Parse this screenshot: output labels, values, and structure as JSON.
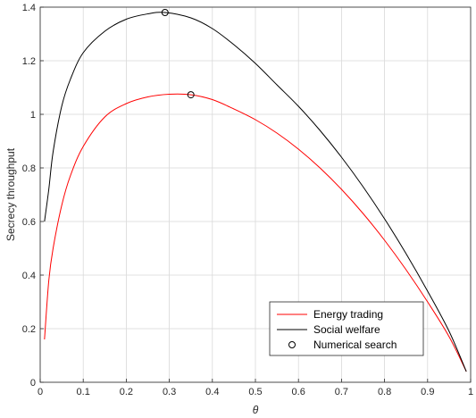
{
  "chart_data": {
    "type": "line",
    "xlabel": "θ",
    "ylabel": "Secrecy throughput",
    "xlim": [
      0,
      1
    ],
    "ylim": [
      0,
      1.4
    ],
    "xticks": [
      "0",
      "0.1",
      "0.2",
      "0.3",
      "0.4",
      "0.5",
      "0.6",
      "0.7",
      "0.8",
      "0.9",
      "1"
    ],
    "yticks": [
      "0",
      "0.2",
      "0.4",
      "0.6",
      "0.8",
      "1",
      "1.2",
      "1.4"
    ],
    "grid": true,
    "legend_position": "bottom-right",
    "series": [
      {
        "name": "Energy trading",
        "color": "#ff0000",
        "x": [
          0.01,
          0.02,
          0.03,
          0.05,
          0.07,
          0.1,
          0.15,
          0.2,
          0.25,
          0.3,
          0.35,
          0.4,
          0.45,
          0.5,
          0.55,
          0.6,
          0.65,
          0.7,
          0.75,
          0.8,
          0.85,
          0.9,
          0.95,
          0.99
        ],
        "y": [
          0.16,
          0.38,
          0.5,
          0.66,
          0.77,
          0.88,
          0.99,
          1.04,
          1.065,
          1.075,
          1.073,
          1.055,
          1.02,
          0.98,
          0.93,
          0.87,
          0.8,
          0.72,
          0.63,
          0.53,
          0.42,
          0.3,
          0.17,
          0.04
        ]
      },
      {
        "name": "Social welfare",
        "color": "#000000",
        "x": [
          0.01,
          0.02,
          0.03,
          0.05,
          0.07,
          0.1,
          0.15,
          0.2,
          0.25,
          0.29,
          0.35,
          0.4,
          0.45,
          0.5,
          0.55,
          0.6,
          0.65,
          0.7,
          0.75,
          0.8,
          0.85,
          0.9,
          0.95,
          0.99
        ],
        "y": [
          0.6,
          0.72,
          0.86,
          1.03,
          1.13,
          1.23,
          1.31,
          1.355,
          1.375,
          1.38,
          1.36,
          1.32,
          1.26,
          1.19,
          1.11,
          1.03,
          0.94,
          0.84,
          0.73,
          0.61,
          0.48,
          0.34,
          0.19,
          0.04
        ]
      },
      {
        "name": "Numerical search",
        "color": "#000000",
        "marker": "circle",
        "x": [
          0.29,
          0.35
        ],
        "y": [
          1.38,
          1.073
        ]
      }
    ]
  }
}
